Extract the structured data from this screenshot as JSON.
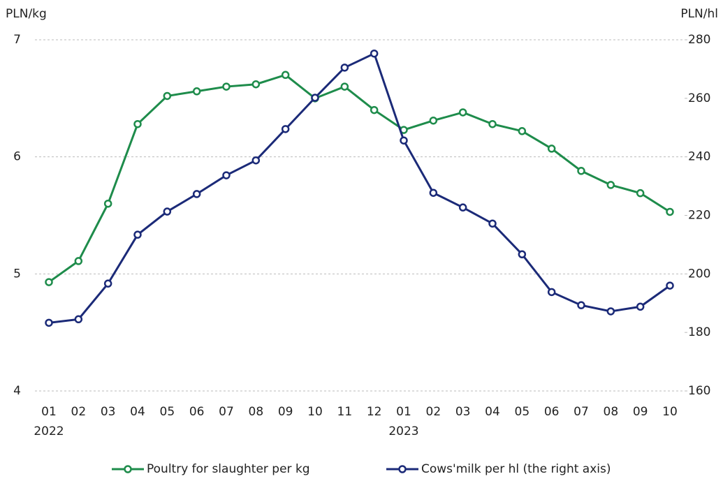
{
  "chart_data": {
    "type": "line",
    "ylabel": "PLN/kg",
    "y2label": "PLN/hl",
    "categories": [
      "01",
      "02",
      "03",
      "04",
      "05",
      "06",
      "07",
      "08",
      "09",
      "10",
      "11",
      "12",
      "01",
      "02",
      "03",
      "04",
      "05",
      "06",
      "07",
      "08",
      "09",
      "10"
    ],
    "year_labels": [
      "2022",
      null,
      null,
      null,
      null,
      null,
      null,
      null,
      null,
      null,
      null,
      null,
      "2023",
      null,
      null,
      null,
      null,
      null,
      null,
      null,
      null,
      null
    ],
    "ylim": [
      4,
      7
    ],
    "yticks": [
      4,
      5,
      6,
      7
    ],
    "y2lim": [
      160,
      280
    ],
    "y2ticks": [
      160,
      180,
      200,
      220,
      240,
      260,
      280
    ],
    "grid": true,
    "legend": "bottom",
    "series": [
      {
        "name": "Poultry for slaughter per kg",
        "color": "#1e8c4b",
        "values": [
          4.93,
          5.11,
          5.6,
          6.28,
          6.52,
          6.56,
          6.6,
          6.62,
          6.7,
          6.5,
          6.6,
          6.4,
          6.23,
          6.31,
          6.38,
          6.28,
          6.22,
          6.07,
          5.88,
          5.76,
          5.69,
          5.53
        ]
      },
      {
        "name": "Cows'milk per hl (the right axis)",
        "color": "#1b2a78",
        "axis": "y2",
        "values": [
          183.3,
          184.5,
          196.7,
          213.4,
          221.3,
          227.3,
          233.7,
          238.8,
          249.5,
          260.2,
          270.5,
          275.3,
          245.6,
          227.7,
          222.7,
          217.2,
          206.7,
          193.8,
          189.3,
          187.2,
          188.8,
          196.0
        ]
      }
    ]
  }
}
